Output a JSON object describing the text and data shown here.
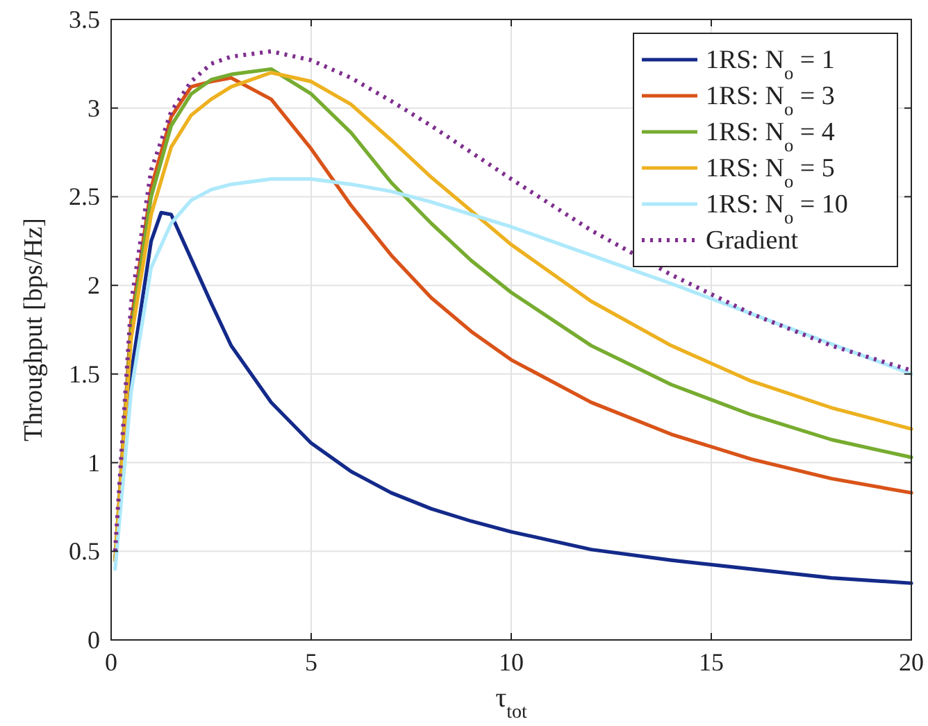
{
  "chart_data": {
    "type": "line",
    "xlabel": "τ$_{tot}$",
    "ylabel": "Throughput [bps/Hz]",
    "xlim": [
      0,
      20
    ],
    "ylim": [
      0,
      3.5
    ],
    "xticks": [
      0,
      5,
      10,
      15,
      20
    ],
    "yticks": [
      0,
      0.5,
      1,
      1.5,
      2,
      2.5,
      3,
      3.5
    ],
    "grid": true,
    "legend": "top right",
    "marker": "none",
    "x": [
      0.1,
      0.5,
      1,
      1.5,
      2,
      2.5,
      3,
      4,
      5,
      6,
      7,
      8,
      9,
      10,
      12,
      14,
      16,
      18,
      20
    ],
    "series": [
      {
        "name": "1RS: N$_{o}$ = 1",
        "color": "#142a8a",
        "x": [
          0.1,
          0.5,
          1,
          1.25,
          1.5,
          2,
          2.5,
          3,
          4,
          5,
          6,
          7,
          8,
          9,
          10,
          12,
          14,
          16,
          18,
          20
        ],
        "values": [
          0.45,
          1.5,
          2.25,
          2.41,
          2.4,
          2.15,
          1.9,
          1.66,
          1.34,
          1.11,
          0.95,
          0.83,
          0.74,
          0.67,
          0.61,
          0.51,
          0.45,
          0.4,
          0.35,
          0.32
        ]
      },
      {
        "name": "1RS: N$_{o}$ = 3",
        "color": "#d95319",
        "values": [
          0.45,
          1.8,
          2.55,
          2.95,
          3.12,
          3.15,
          3.17,
          3.05,
          2.77,
          2.45,
          2.17,
          1.93,
          1.74,
          1.58,
          1.34,
          1.16,
          1.02,
          0.91,
          0.83
        ]
      },
      {
        "name": "1RS: N$_{o}$ = 4",
        "color": "#77ac30",
        "values": [
          0.45,
          1.75,
          2.5,
          2.9,
          3.08,
          3.16,
          3.19,
          3.22,
          3.08,
          2.86,
          2.58,
          2.35,
          2.14,
          1.96,
          1.66,
          1.44,
          1.27,
          1.13,
          1.03
        ]
      },
      {
        "name": "1RS: N$_{o}$ = 5",
        "color": "#edb120",
        "values": [
          0.45,
          1.7,
          2.4,
          2.78,
          2.96,
          3.05,
          3.12,
          3.2,
          3.15,
          3.02,
          2.82,
          2.61,
          2.42,
          2.23,
          1.91,
          1.66,
          1.46,
          1.31,
          1.19
        ]
      },
      {
        "name": "1RS: N$_{o}$ = 10",
        "color": "#aee9fb",
        "values": [
          0.4,
          1.4,
          2.1,
          2.35,
          2.48,
          2.54,
          2.57,
          2.6,
          2.6,
          2.57,
          2.53,
          2.47,
          2.4,
          2.33,
          2.17,
          2.01,
          1.84,
          1.67,
          1.5
        ]
      },
      {
        "name": "Gradient",
        "color": "#7e2f8e",
        "line_style": "dotted",
        "values": [
          0.5,
          1.9,
          2.65,
          2.98,
          3.15,
          3.25,
          3.29,
          3.32,
          3.27,
          3.17,
          3.04,
          2.9,
          2.75,
          2.6,
          2.31,
          2.06,
          1.84,
          1.66,
          1.52
        ]
      }
    ]
  }
}
